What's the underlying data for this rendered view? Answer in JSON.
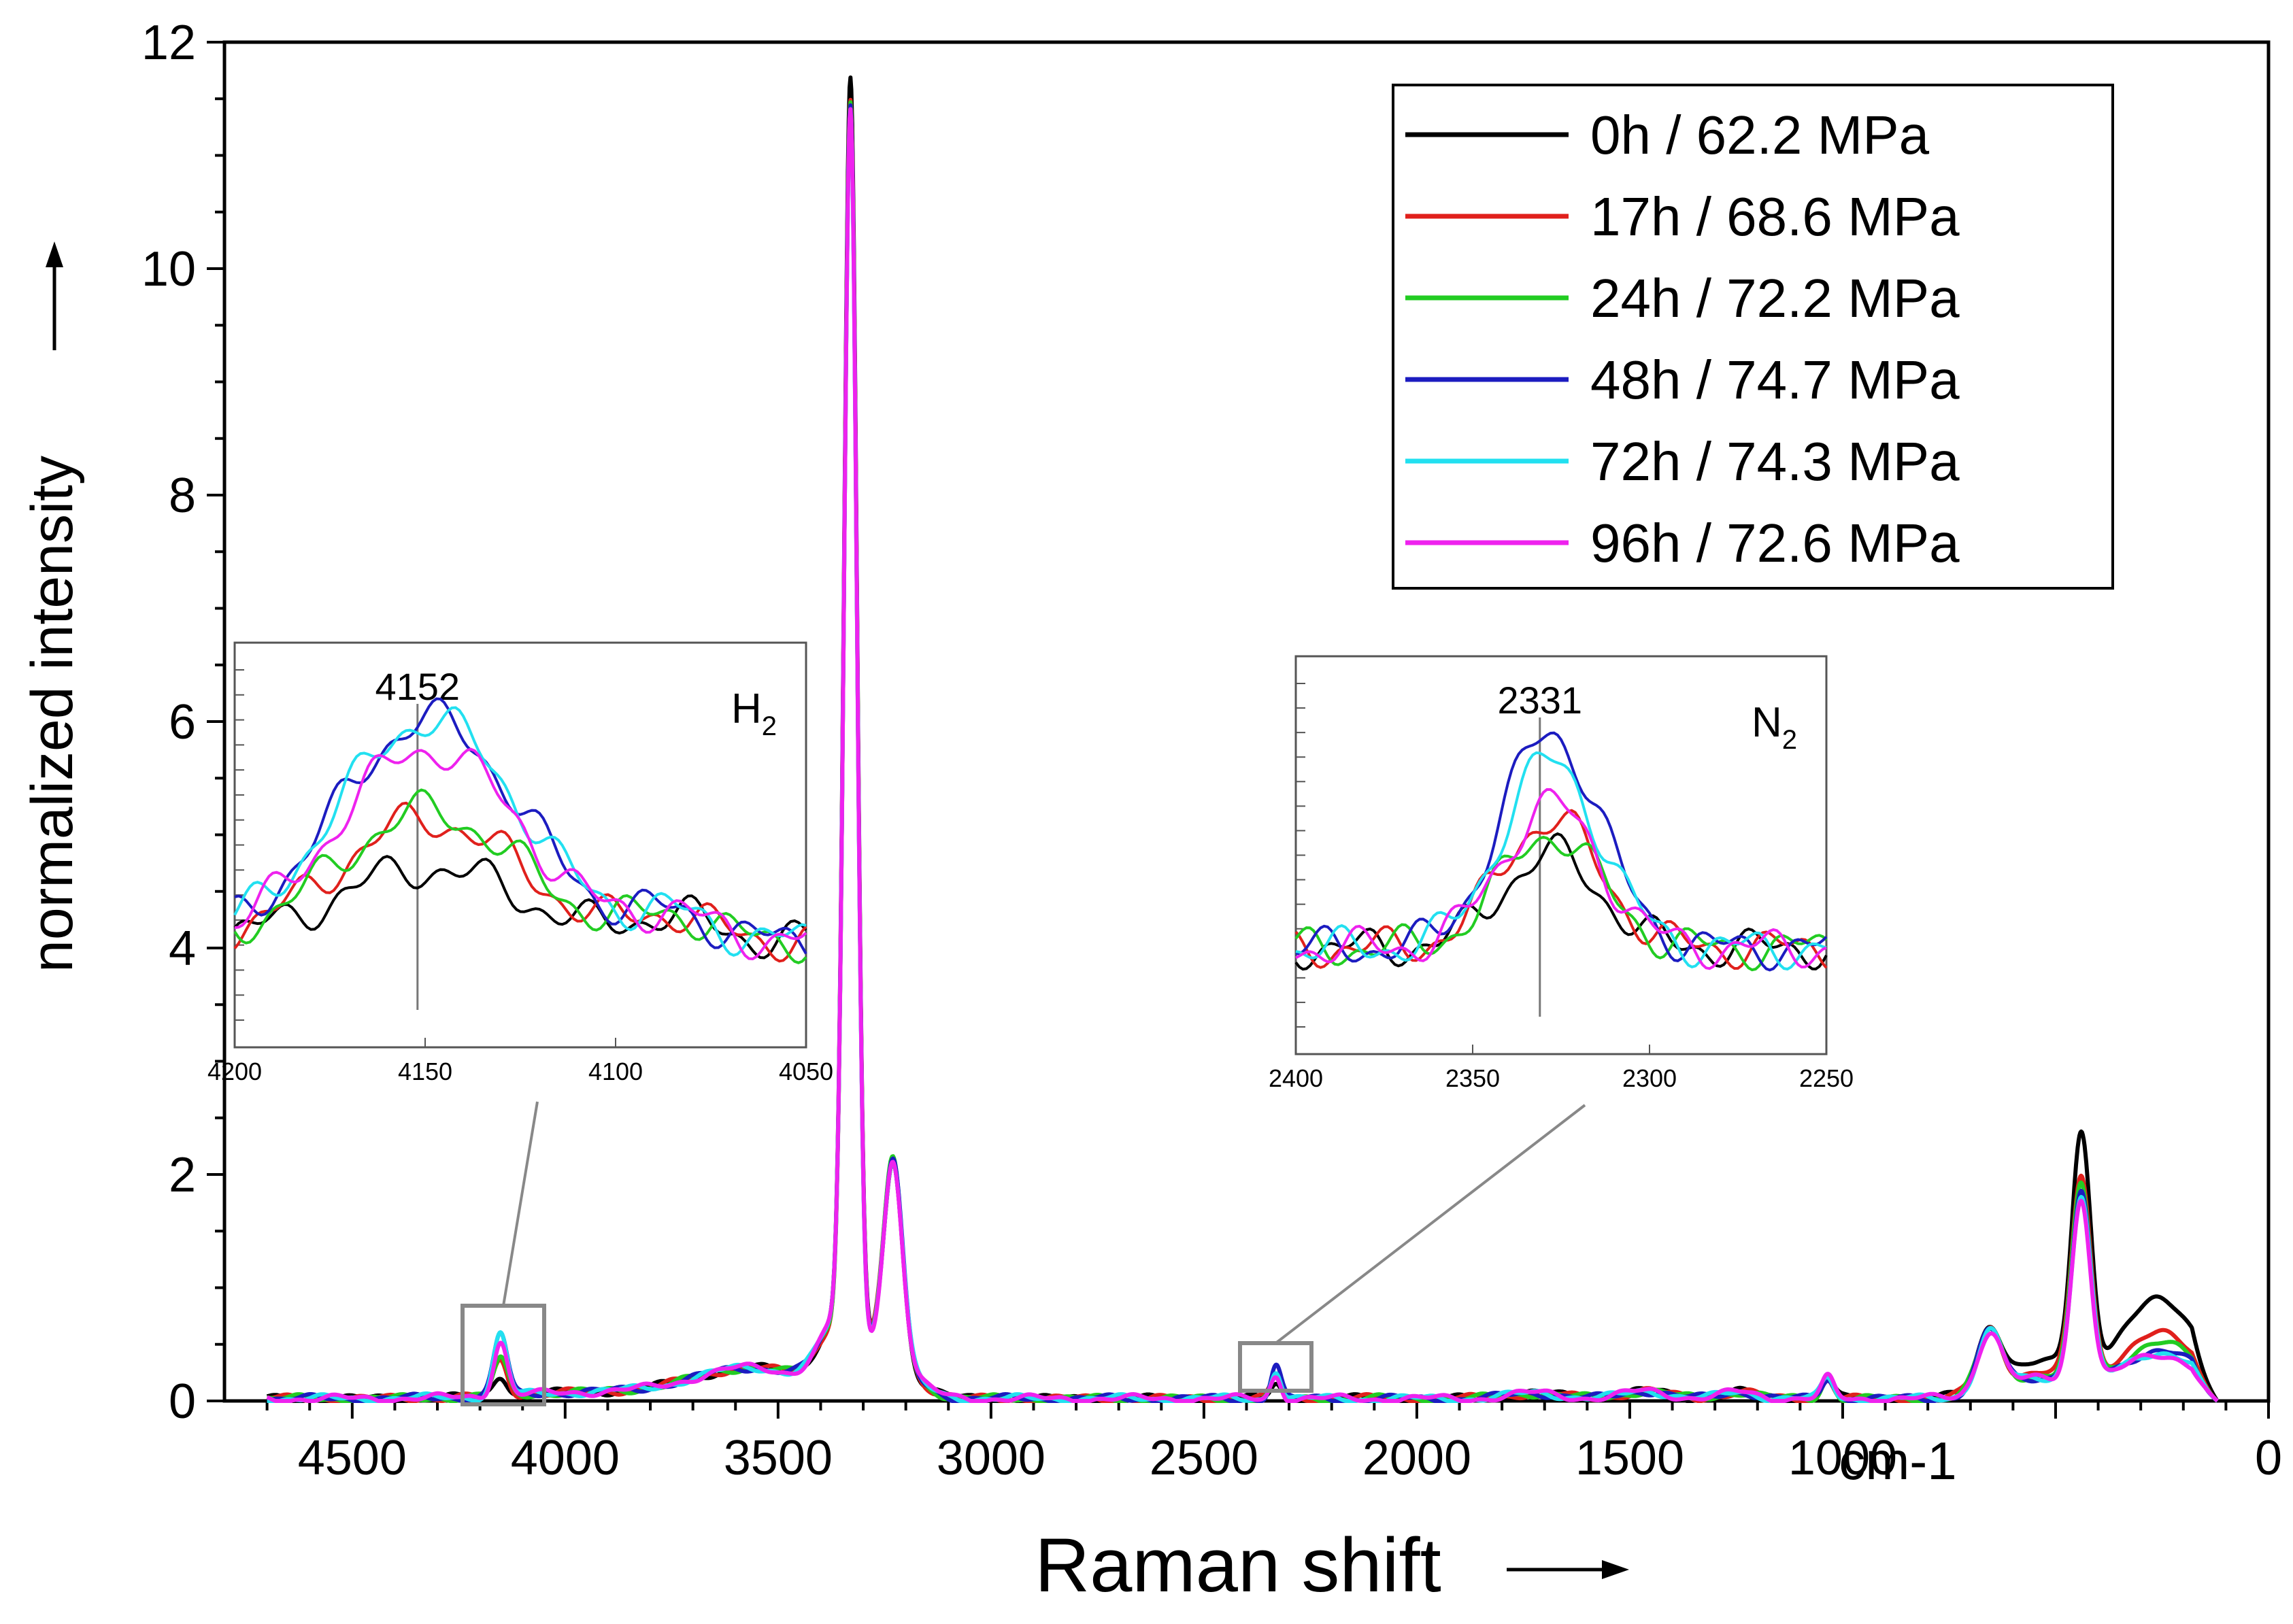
{
  "chart_data": {
    "type": "line",
    "title": "",
    "xlabel": "Raman shift",
    "ylabel": "normalized intensity",
    "x_unit": "cm-1",
    "xlim": [
      4800,
      0
    ],
    "ylim": [
      0,
      12
    ],
    "x_ticks": [
      4500,
      4000,
      3500,
      3000,
      2500,
      2000,
      1500,
      1000,
      0
    ],
    "x_tick_labels": [
      "4500",
      "4000",
      "3500",
      "3000",
      "2500",
      "2000",
      "1500",
      "1000",
      "0"
    ],
    "y_ticks": [
      0,
      2,
      4,
      6,
      8,
      10,
      12
    ],
    "y_tick_labels": [
      "0",
      "2",
      "4",
      "6",
      "8",
      "10",
      "12"
    ],
    "legend_position": "top-right",
    "series": [
      {
        "name": "0h / 62.2 MPa",
        "color": "#000000",
        "h2_peak": 0.18,
        "n2_peak": 0.13,
        "main_peak": 11.6,
        "low_peak": 2.15,
        "shoulder": 1.12
      },
      {
        "name": "17h / 68.6 MPa",
        "color": "#e0201c",
        "h2_peak": 0.3,
        "n2_peak": 0.18,
        "main_peak": 11.4,
        "low_peak": 1.85,
        "shoulder": 0.82
      },
      {
        "name": "24h / 72.2 MPa",
        "color": "#22cc22",
        "h2_peak": 0.32,
        "n2_peak": 0.16,
        "main_peak": 11.4,
        "low_peak": 1.78,
        "shoulder": 0.74
      },
      {
        "name": "48h / 74.7 MPa",
        "color": "#1c1cc0",
        "h2_peak": 0.55,
        "n2_peak": 0.3,
        "main_peak": 11.4,
        "low_peak": 1.72,
        "shoulder": 0.68
      },
      {
        "name": "72h / 74.3 MPa",
        "color": "#22e0f0",
        "h2_peak": 0.55,
        "n2_peak": 0.26,
        "main_peak": 11.3,
        "low_peak": 1.72,
        "shoulder": 0.66
      },
      {
        "name": "96h / 72.6 MPa",
        "color": "#ee22ee",
        "h2_peak": 0.48,
        "n2_peak": 0.2,
        "main_peak": 11.3,
        "low_peak": 1.7,
        "shoulder": 0.64
      }
    ],
    "insets": [
      {
        "id": "h2",
        "label": "H",
        "subscript": "2",
        "center_label": "4152",
        "center": 4152,
        "xlim": [
          4200,
          4050
        ],
        "x_tick_labels": [
          "4200",
          "4150",
          "4100",
          "4050"
        ],
        "source_range": [
          4200,
          4050
        ]
      },
      {
        "id": "n2",
        "label": "N",
        "subscript": "2",
        "center_label": "2331",
        "center": 2331,
        "xlim": [
          2400,
          2250
        ],
        "x_tick_labels": [
          "2400",
          "2350",
          "2300",
          "2250"
        ],
        "source_range": [
          2400,
          2250
        ]
      }
    ]
  }
}
